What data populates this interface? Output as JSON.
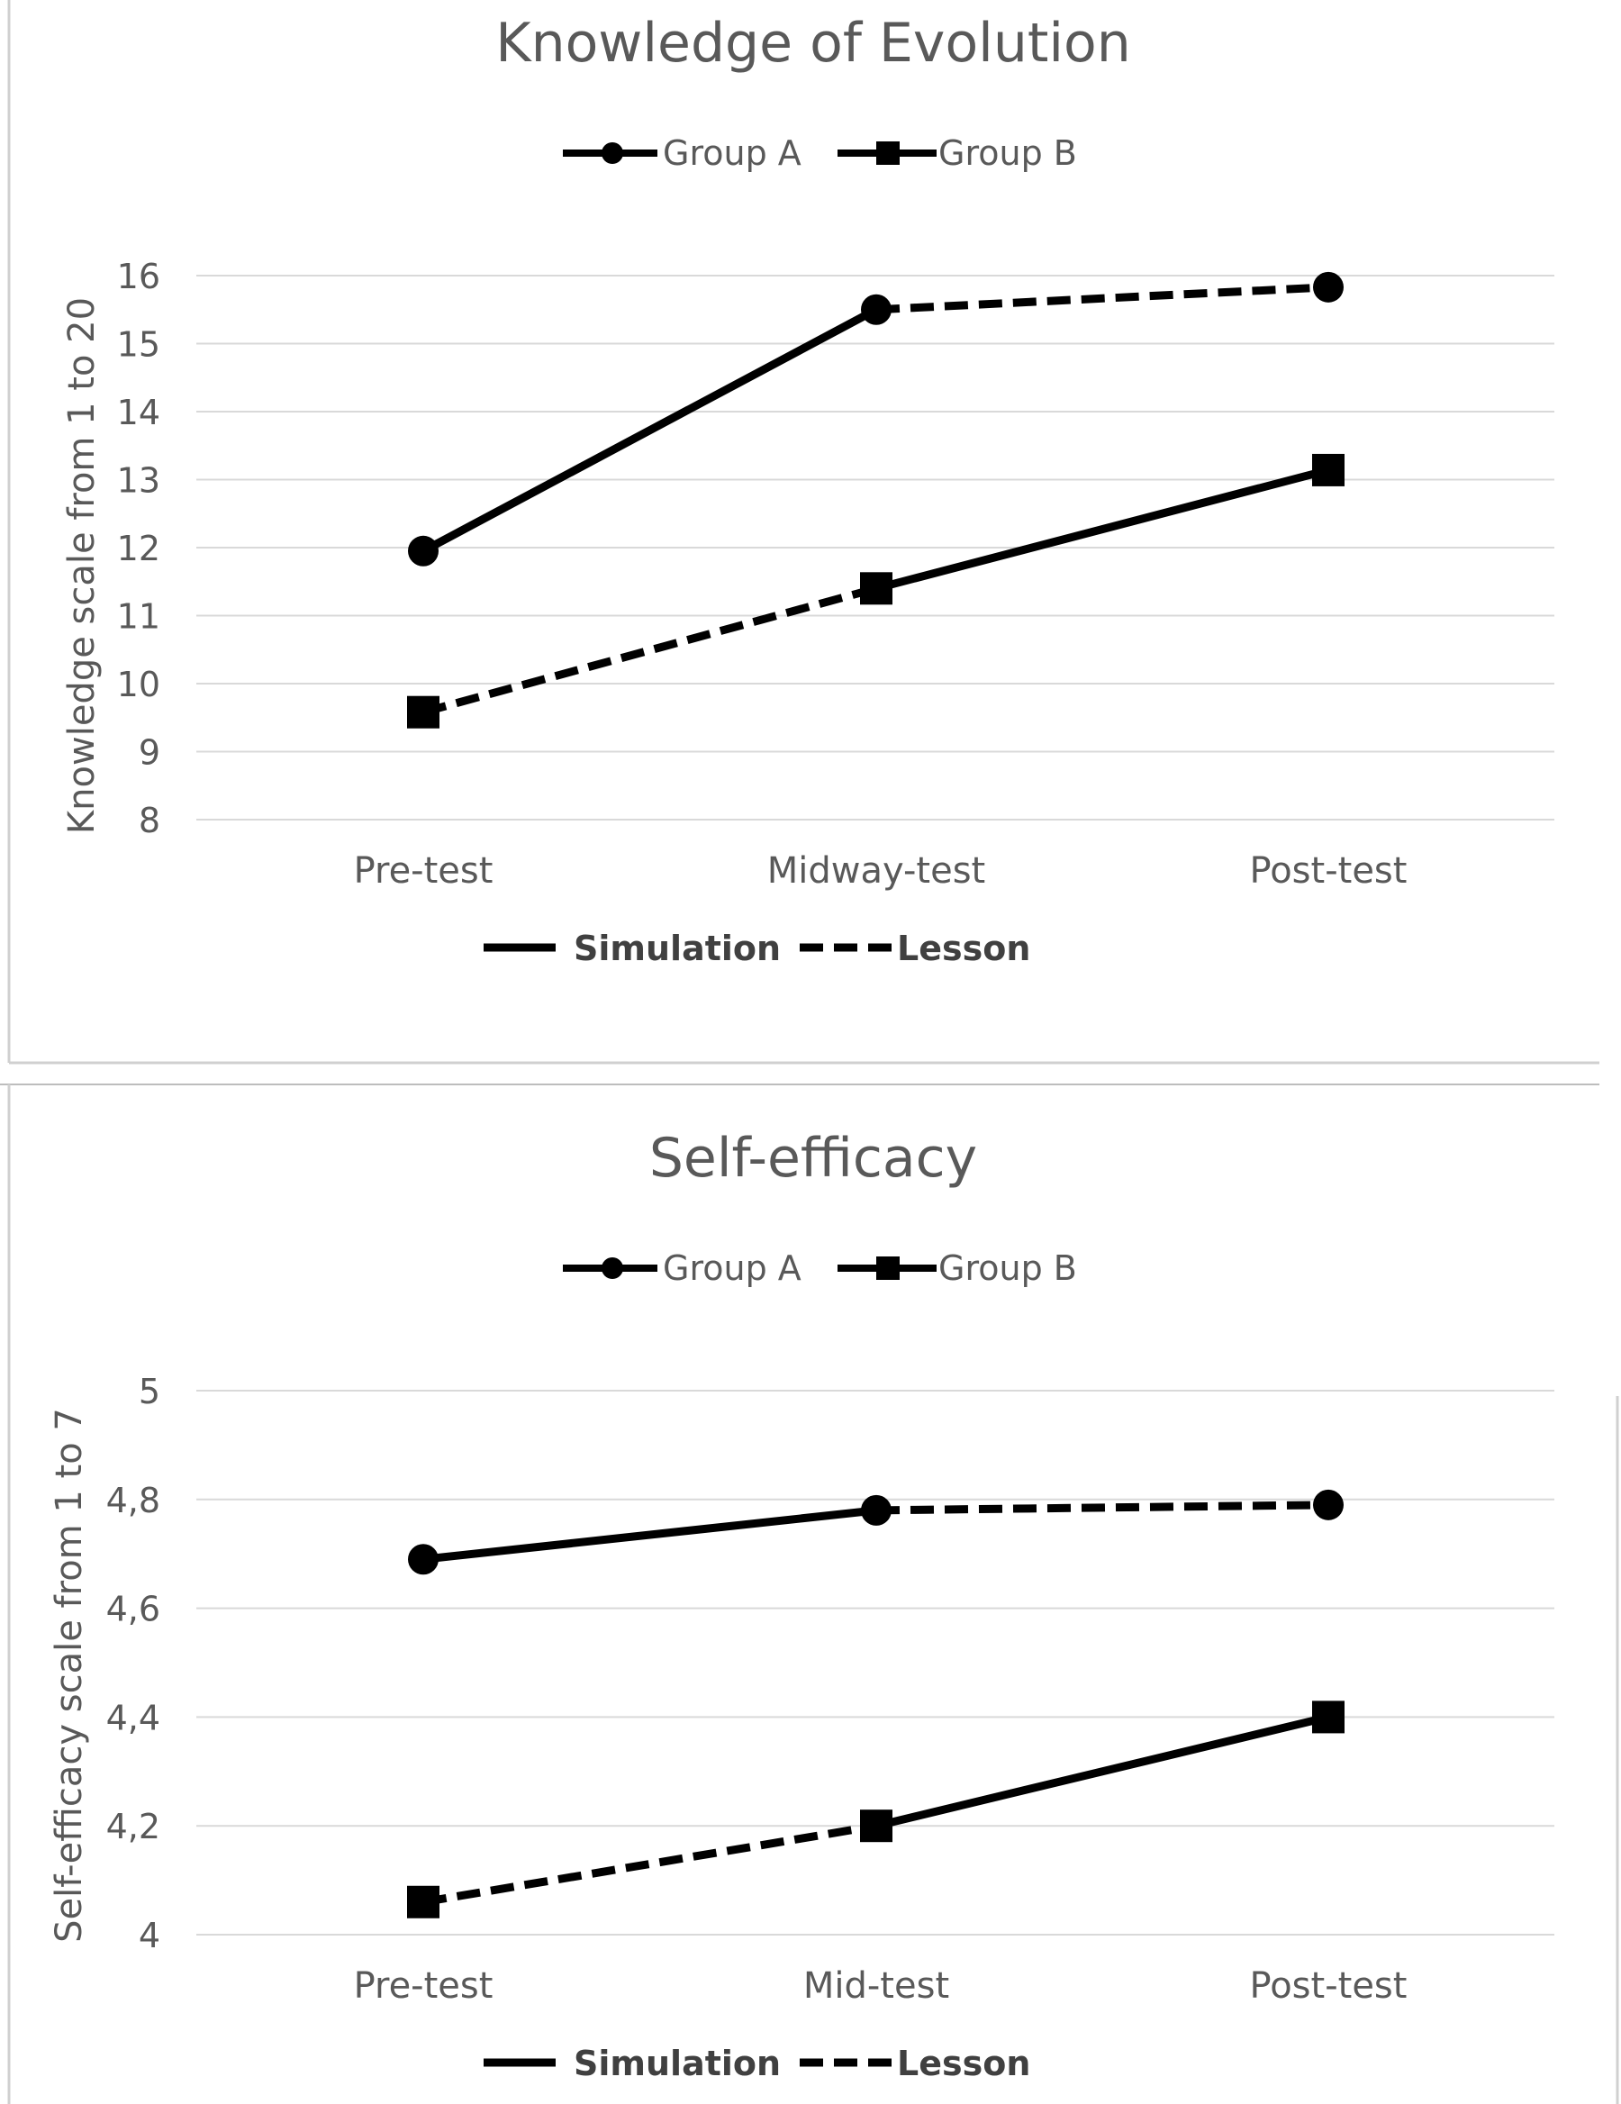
{
  "chart_data": [
    {
      "type": "line",
      "title": "Knowledge of Evolution",
      "ylabel": "Knowledge  scale from 1 to 20",
      "xlabel": "",
      "categories": [
        "Pre-test",
        "Midway-test",
        "Post-test"
      ],
      "ylim": [
        8,
        16
      ],
      "yticks": [
        8,
        9,
        10,
        11,
        12,
        13,
        14,
        15,
        16
      ],
      "ytick_labels": [
        "8",
        "9",
        "10",
        "11",
        "12",
        "13",
        "14",
        "15",
        "16"
      ],
      "grid": true,
      "series": [
        {
          "name": "Group A",
          "marker": "circle",
          "values": [
            11.95,
            15.5,
            15.83
          ],
          "segment_styles": [
            "solid",
            "dashed"
          ]
        },
        {
          "name": "Group B",
          "marker": "square",
          "values": [
            9.58,
            11.4,
            13.14
          ],
          "segment_styles": [
            "dashed",
            "solid"
          ]
        }
      ],
      "legend_groups": [
        "Group A",
        "Group B"
      ],
      "legend_conditions": [
        {
          "label": "Simulation",
          "style": "solid"
        },
        {
          "label": "Lesson",
          "style": "dashed"
        }
      ],
      "legend_groups_position": "top-center",
      "legend_conditions_position": "bottom-center"
    },
    {
      "type": "line",
      "title": "Self-efficacy",
      "ylabel": "Self-efficacy scale  from 1 to 7",
      "xlabel": "",
      "categories": [
        "Pre-test",
        "Mid-test",
        "Post-test"
      ],
      "ylim": [
        4,
        5
      ],
      "yticks": [
        4,
        4.2,
        4.4,
        4.6,
        4.8,
        5
      ],
      "ytick_labels": [
        "4",
        "4,2",
        "4,4",
        "4,6",
        "4,8",
        "5"
      ],
      "grid": true,
      "series": [
        {
          "name": "Group A",
          "marker": "circle",
          "values": [
            4.69,
            4.78,
            4.79
          ],
          "segment_styles": [
            "solid",
            "dashed"
          ]
        },
        {
          "name": "Group B",
          "marker": "square",
          "values": [
            4.06,
            4.2,
            4.4
          ],
          "segment_styles": [
            "dashed",
            "solid"
          ]
        }
      ],
      "legend_groups": [
        "Group A",
        "Group B"
      ],
      "legend_conditions": [
        {
          "label": "Simulation",
          "style": "solid"
        },
        {
          "label": "Lesson",
          "style": "dashed"
        }
      ],
      "legend_groups_position": "top-center",
      "legend_conditions_position": "bottom-center"
    }
  ],
  "colors": {
    "line": "#000000",
    "grid": "#d9d9d9",
    "text": "#595959",
    "frame": "#d0d0d0"
  }
}
